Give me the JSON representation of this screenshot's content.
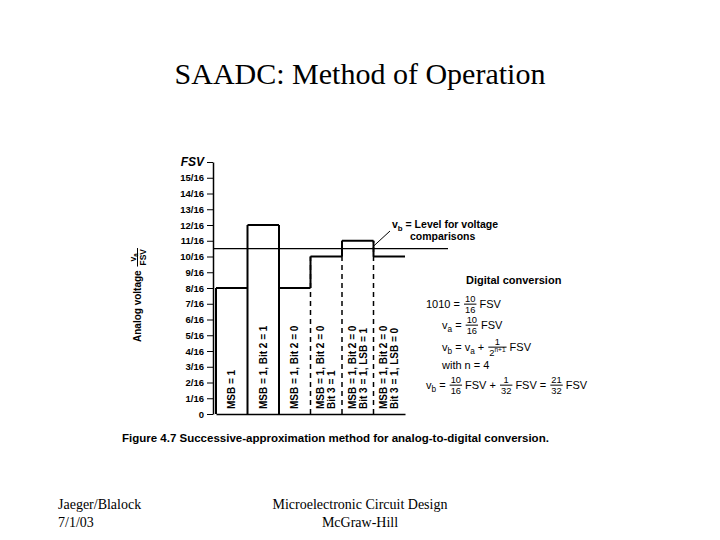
{
  "slide": {
    "title": "SAADC: Method of Operation",
    "footer": {
      "left": [
        "Jaeger/Blalock",
        "7/1/03"
      ],
      "center": [
        "Microelectronic Circuit Design",
        "McGraw-Hill"
      ]
    }
  },
  "chart_data": {
    "type": "step",
    "color": "#000000",
    "categories": [
      [
        "MSB = 1"
      ],
      [
        "MSB = 1, Bit 2 = 1"
      ],
      [
        "MSB = 1, Bit 2 = 0"
      ],
      [
        "MSB = 1, Bit 2 = 0",
        "Bit 3 = 1"
      ],
      [
        "MSB = 1, Bit 2 = 0",
        "Bit 3 = 1, LSB = 1"
      ],
      [
        "MSB = 1, Bit 2 = 0",
        "Bit 3 = 1, LSB = 0"
      ]
    ],
    "values": [
      0.5,
      0.75,
      0.5,
      0.625,
      0.6875,
      0.625
    ],
    "ylim": [
      0,
      1
    ],
    "yticks": [
      0,
      {
        "value": 0.0625,
        "label": "1/16"
      },
      {
        "value": 0.125,
        "label": "2/16"
      },
      {
        "value": 0.1875,
        "label": "3/16"
      },
      {
        "value": 0.25,
        "label": "4/16"
      },
      {
        "value": 0.3125,
        "label": "5/16"
      },
      {
        "value": 0.375,
        "label": "6/16"
      },
      {
        "value": 0.4375,
        "label": "7/16"
      },
      {
        "value": 0.5,
        "label": "8/16"
      },
      {
        "value": 0.5625,
        "label": "9/16"
      },
      {
        "value": 0.625,
        "label": "10/16"
      },
      {
        "value": 0.6875,
        "label": "11/16"
      },
      {
        "value": 0.75,
        "label": "12/16"
      },
      {
        "value": 0.8125,
        "label": "13/16"
      },
      {
        "value": 0.875,
        "label": "14/16"
      },
      {
        "value": 0.9375,
        "label": "15/16"
      },
      {
        "value": 1,
        "label": "FSV"
      }
    ],
    "y_label": {
      "parts": [
        "Analog voltage ",
        {
          "frac": [
            [
              "v",
              {
                "sub": "a"
              }
            ],
            "FSV"
          ]
        }
      ]
    },
    "threshold": {
      "value": 0.65625,
      "label": [
        [
          "v",
          {
            "sub": "b"
          },
          " = Level for voltage"
        ],
        [
          "comparisons"
        ]
      ]
    },
    "annotations": [
      {
        "parts": [
          "Digital conversion"
        ]
      },
      {
        "parts": [
          "1010 = ",
          {
            "frac": [
              "10",
              "16"
            ]
          },
          "FSV"
        ]
      },
      {
        "parts": [
          "v",
          {
            "sub": "a"
          },
          " = ",
          {
            "frac": [
              "10",
              "16"
            ]
          },
          "FSV"
        ]
      },
      {
        "parts": [
          "v",
          {
            "sub": "b"
          },
          " = v",
          {
            "sub": "a"
          },
          " + ",
          {
            "frac": [
              "1",
              [
                "2",
                {
                  "sup": "n+1"
                }
              ]
            ]
          },
          "FSV"
        ]
      },
      {
        "parts": [
          "with n = 4"
        ]
      },
      {
        "parts": [
          "v",
          {
            "sub": "b"
          },
          " = ",
          {
            "frac": [
              "10",
              "16"
            ]
          },
          "FSV + ",
          {
            "frac": [
              "1",
              "32"
            ]
          },
          "FSV = ",
          {
            "frac": [
              "21",
              "32"
            ]
          },
          "FSV"
        ]
      }
    ],
    "caption": {
      "parts": [
        "Figure 4.7",
        " Successive-approximation method for analog-to-digital conversion."
      ]
    }
  }
}
